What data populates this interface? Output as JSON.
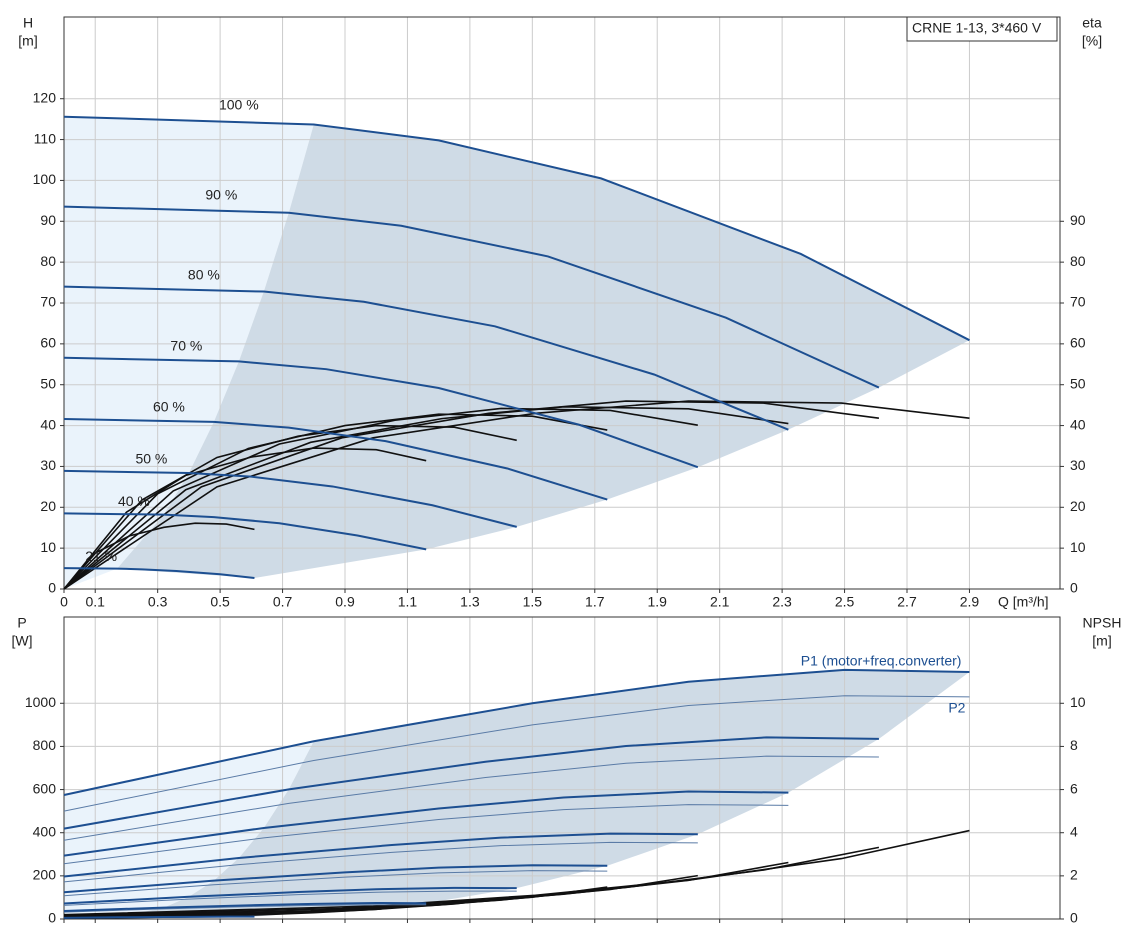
{
  "chart_data": [
    {
      "type": "line",
      "title": "CRNE 1-13, 3*460 V",
      "ylabel": "H",
      "yunit": "[m]",
      "y2label": "eta",
      "y2unit": "[%]",
      "xlabel": "Q [m³/h]",
      "xlim": [
        0,
        3.19
      ],
      "ylim": [
        0,
        140
      ],
      "y2lim": [
        0,
        140
      ],
      "xticks": [
        0,
        0.1,
        0.3,
        0.5,
        0.7,
        0.9,
        1.1,
        1.3,
        1.5,
        1.7,
        1.9,
        2.1,
        2.3,
        2.5,
        2.7,
        2.9
      ],
      "yticks": [
        0,
        10,
        20,
        30,
        40,
        50,
        60,
        70,
        80,
        90,
        100,
        110,
        120
      ],
      "y2ticks": [
        0,
        10,
        20,
        30,
        40,
        50,
        60,
        70,
        80,
        90
      ],
      "grid": true,
      "xtick_labels": true,
      "shade_area": true,
      "area_color": "#cfdbe6",
      "light_area_color": "#eaf3fb",
      "series": [
        {
          "name": "100 %",
          "color": "#1d4f91",
          "x": [
            0,
            0.8,
            1.2,
            1.72,
            2.36,
            2.9
          ],
          "values": [
            115.6,
            113.7,
            109.8,
            100.5,
            82,
            60.9
          ]
        },
        {
          "name": "90 %",
          "color": "#1d4f91",
          "x": [
            0,
            0.72,
            1.08,
            1.55,
            2.12,
            2.61
          ],
          "values": [
            93.6,
            92.1,
            88.9,
            81.4,
            66.4,
            49.3
          ]
        },
        {
          "name": "80 %",
          "color": "#1d4f91",
          "x": [
            0,
            0.64,
            0.96,
            1.38,
            1.89,
            2.32
          ],
          "values": [
            74.0,
            72.8,
            70.3,
            64.3,
            52.5,
            39.0
          ]
        },
        {
          "name": "70 %",
          "color": "#1d4f91",
          "x": [
            0,
            0.56,
            0.84,
            1.2,
            1.65,
            2.03
          ],
          "values": [
            56.6,
            55.7,
            53.8,
            49.2,
            40.2,
            29.8
          ]
        },
        {
          "name": "60 %",
          "color": "#1d4f91",
          "x": [
            0,
            0.48,
            0.72,
            1.03,
            1.42,
            1.74
          ],
          "values": [
            41.6,
            40.9,
            39.5,
            36.2,
            29.5,
            21.9
          ]
        },
        {
          "name": "50 %",
          "color": "#1d4f91",
          "x": [
            0,
            0.4,
            0.6,
            0.86,
            1.18,
            1.45
          ],
          "values": [
            28.9,
            28.4,
            27.5,
            25.1,
            20.5,
            15.2
          ]
        },
        {
          "name": "40 %",
          "color": "#1d4f91",
          "x": [
            0,
            0.32,
            0.48,
            0.69,
            0.94,
            1.16
          ],
          "values": [
            18.5,
            18.2,
            17.6,
            16.1,
            13.1,
            9.7
          ]
        },
        {
          "name": "21 %",
          "color": "#1d4f91",
          "x": [
            0,
            0.17,
            0.25,
            0.36,
            0.5,
            0.61
          ],
          "values": [
            5.1,
            5.0,
            4.8,
            4.4,
            3.6,
            2.7
          ]
        }
      ],
      "y2_series": [
        {
          "color": "#111111",
          "x": [
            0,
            0.49,
            0.99,
            1.51,
            2.0,
            2.49,
            2.9
          ],
          "values": [
            0,
            25,
            37,
            43,
            46,
            45.5,
            41.8
          ]
        },
        {
          "color": "#111111",
          "x": [
            0,
            0.44,
            0.89,
            1.36,
            1.8,
            2.24,
            2.61
          ],
          "values": [
            0,
            25,
            37,
            43,
            46,
            45.5,
            41.8
          ]
        },
        {
          "color": "#111111",
          "x": [
            0,
            0.39,
            0.79,
            1.21,
            1.6,
            2.0,
            2.32
          ],
          "values": [
            0,
            24.3,
            35.9,
            41.7,
            44.6,
            44.1,
            40.5
          ]
        },
        {
          "color": "#111111",
          "x": [
            0,
            0.35,
            0.69,
            1.06,
            1.4,
            1.75,
            2.03
          ],
          "values": [
            0,
            24,
            35.5,
            41.3,
            44.2,
            43.7,
            40.1
          ]
        },
        {
          "color": "#111111",
          "x": [
            0,
            0.3,
            0.59,
            0.9,
            1.2,
            1.5,
            1.74
          ],
          "values": [
            0,
            23.3,
            34.4,
            40,
            42.8,
            42.3,
            38.9
          ]
        },
        {
          "color": "#111111",
          "x": [
            0,
            0.25,
            0.49,
            0.75,
            1.0,
            1.25,
            1.45
          ],
          "values": [
            0,
            21.8,
            32.2,
            37.4,
            40,
            39.6,
            36.4
          ]
        },
        {
          "color": "#111111",
          "x": [
            0,
            0.2,
            0.39,
            0.6,
            0.8,
            1.0,
            1.16
          ],
          "values": [
            0,
            18.8,
            27.8,
            32.3,
            34.5,
            34.1,
            31.4
          ]
        },
        {
          "color": "#111111",
          "x": [
            0,
            0.1,
            0.21,
            0.32,
            0.42,
            0.52,
            0.61
          ],
          "values": [
            0,
            8.8,
            13,
            15.1,
            16.1,
            15.9,
            14.6
          ]
        }
      ]
    },
    {
      "type": "line",
      "ylabel": "P",
      "yunit": "[W]",
      "y2label": "NPSH",
      "y2unit": "[m]",
      "xlim": [
        0,
        3.19
      ],
      "ylim": [
        0,
        1400
      ],
      "y2lim": [
        0,
        14
      ],
      "xticks": [
        0,
        0.1,
        0.3,
        0.5,
        0.7,
        0.9,
        1.1,
        1.3,
        1.5,
        1.7,
        1.9,
        2.1,
        2.3,
        2.5,
        2.7,
        2.9
      ],
      "yticks": [
        0,
        200,
        400,
        600,
        800,
        1000
      ],
      "y2ticks": [
        0,
        2,
        4,
        6,
        8,
        10
      ],
      "grid": true,
      "xtick_labels": false,
      "shade_area": true,
      "area_color": "#cfdbe6",
      "light_area_color": "#eaf3fb",
      "series": [
        {
          "name": "P1 (motor+freq.converter)",
          "color": "#1d4f91",
          "x": [
            0,
            0.8,
            1.5,
            2.0,
            2.5,
            2.9
          ],
          "values": [
            575,
            824,
            1000,
            1100,
            1155,
            1145
          ]
        },
        {
          "color": "#1d4f91",
          "x": [
            0,
            0.72,
            1.35,
            1.8,
            2.25,
            2.61
          ],
          "values": [
            419,
            601,
            729,
            802,
            842,
            835
          ]
        },
        {
          "color": "#1d4f91",
          "x": [
            0,
            0.64,
            1.2,
            1.6,
            2.0,
            2.32
          ],
          "values": [
            294,
            422,
            512,
            563,
            591,
            586
          ]
        },
        {
          "color": "#1d4f91",
          "x": [
            0,
            0.56,
            1.05,
            1.4,
            1.75,
            2.03
          ],
          "values": [
            197,
            283,
            343,
            377,
            396,
            393
          ]
        },
        {
          "color": "#1d4f91",
          "x": [
            0,
            0.48,
            0.9,
            1.2,
            1.5,
            1.74
          ],
          "values": [
            124,
            178,
            216,
            238,
            249,
            247
          ]
        },
        {
          "color": "#1d4f91",
          "x": [
            0,
            0.4,
            0.75,
            1.0,
            1.25,
            1.45
          ],
          "values": [
            72,
            103,
            125,
            138,
            144,
            143
          ]
        },
        {
          "color": "#1d4f91",
          "x": [
            0,
            0.32,
            0.6,
            0.8,
            1.0,
            1.16
          ],
          "values": [
            37,
            53,
            64,
            70,
            74,
            73
          ]
        },
        {
          "color": "#1d4f91",
          "x": [
            0,
            0.17,
            0.32,
            0.42,
            0.53,
            0.61
          ],
          "values": [
            5,
            8,
            9,
            10,
            11,
            11
          ]
        }
      ],
      "p2_series": [
        {
          "name": "P2",
          "color": "#5a7ba6",
          "x": [
            0,
            0.8,
            1.5,
            2.0,
            2.5,
            2.9
          ],
          "values": [
            500,
            735,
            900,
            990,
            1035,
            1030
          ]
        },
        {
          "color": "#5a7ba6",
          "x": [
            0,
            0.72,
            1.35,
            1.8,
            2.25,
            2.61
          ],
          "values": [
            365,
            536,
            656,
            722,
            755,
            751
          ]
        },
        {
          "color": "#5a7ba6",
          "x": [
            0,
            0.64,
            1.2,
            1.6,
            2.0,
            2.32
          ],
          "values": [
            256,
            376,
            461,
            507,
            530,
            527
          ]
        },
        {
          "color": "#5a7ba6",
          "x": [
            0,
            0.56,
            1.05,
            1.4,
            1.75,
            2.03
          ],
          "values": [
            172,
            252,
            309,
            340,
            355,
            353
          ]
        },
        {
          "color": "#5a7ba6",
          "x": [
            0,
            0.48,
            0.9,
            1.2,
            1.5,
            1.74
          ],
          "values": [
            108,
            159,
            194,
            214,
            224,
            222
          ]
        },
        {
          "color": "#5a7ba6",
          "x": [
            0,
            0.4,
            0.75,
            1.0,
            1.25,
            1.45
          ],
          "values": [
            63,
            92,
            113,
            124,
            129,
            129
          ]
        },
        {
          "color": "#5a7ba6",
          "x": [
            0,
            0.32,
            0.6,
            0.8,
            1.0,
            1.16
          ],
          "values": [
            32,
            47,
            58,
            63,
            66,
            66
          ]
        },
        {
          "color": "#5a7ba6",
          "x": [
            0,
            0.17,
            0.32,
            0.42,
            0.53,
            0.61
          ],
          "values": [
            5,
            7,
            8,
            9,
            10,
            10
          ]
        }
      ],
      "y2_series": [
        {
          "color": "#111111",
          "x": [
            0,
            0.99,
            1.51,
            2.0,
            2.49,
            2.9
          ],
          "values": [
            0.2,
            0.6,
            1.1,
            1.8,
            2.8,
            4.1
          ]
        },
        {
          "color": "#111111",
          "x": [
            0,
            0.89,
            1.36,
            1.8,
            2.24,
            2.61
          ],
          "values": [
            0.16,
            0.49,
            0.89,
            1.46,
            2.27,
            3.32
          ]
        },
        {
          "color": "#111111",
          "x": [
            0,
            0.79,
            1.21,
            1.6,
            2.0,
            2.32
          ],
          "values": [
            0.13,
            0.38,
            0.7,
            1.15,
            1.79,
            2.62
          ]
        },
        {
          "color": "#111111",
          "x": [
            0,
            0.69,
            1.06,
            1.4,
            1.75,
            2.03
          ],
          "values": [
            0.1,
            0.29,
            0.54,
            0.88,
            1.37,
            2.01
          ]
        },
        {
          "color": "#111111",
          "x": [
            0,
            0.59,
            0.9,
            1.2,
            1.5,
            1.74
          ],
          "values": [
            0.07,
            0.22,
            0.4,
            0.65,
            1.01,
            1.48
          ]
        },
        {
          "color": "#111111",
          "x": [
            0,
            0.49,
            0.75,
            1.0,
            1.25,
            1.45
          ],
          "values": [
            0.05,
            0.15,
            0.28,
            0.45,
            0.7,
            1.03
          ]
        },
        {
          "color": "#111111",
          "x": [
            0,
            0.39,
            0.6,
            0.8,
            1.0,
            1.16
          ],
          "values": [
            0.03,
            0.1,
            0.18,
            0.29,
            0.45,
            0.66
          ]
        }
      ]
    }
  ]
}
